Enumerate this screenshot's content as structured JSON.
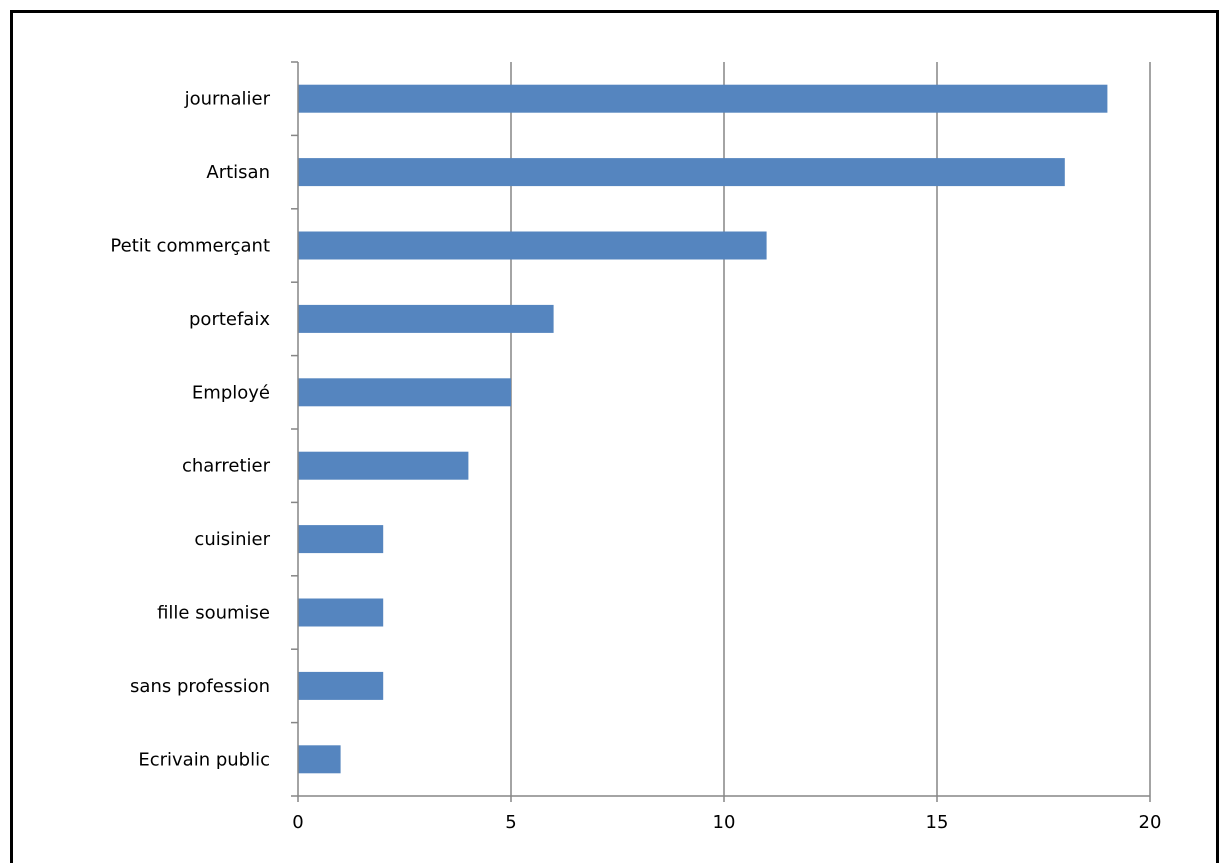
{
  "chart_data": {
    "type": "bar",
    "orientation": "horizontal",
    "categories": [
      "journalier",
      "Artisan",
      "Petit commerçant",
      "portefaix",
      "Employé",
      "charretier",
      "cuisinier",
      "fille soumise",
      "sans profession",
      "Ecrivain public"
    ],
    "values": [
      19,
      18,
      11,
      6,
      5,
      4,
      2,
      2,
      2,
      1
    ],
    "x_ticks": [
      "0",
      "5",
      "10",
      "15",
      "20"
    ],
    "xlim": [
      0,
      20
    ],
    "title": "",
    "xlabel": "",
    "ylabel": "",
    "grid": "vertical",
    "legend": "none",
    "bar_color": "#5585BF",
    "gridline_color": "#868686"
  }
}
